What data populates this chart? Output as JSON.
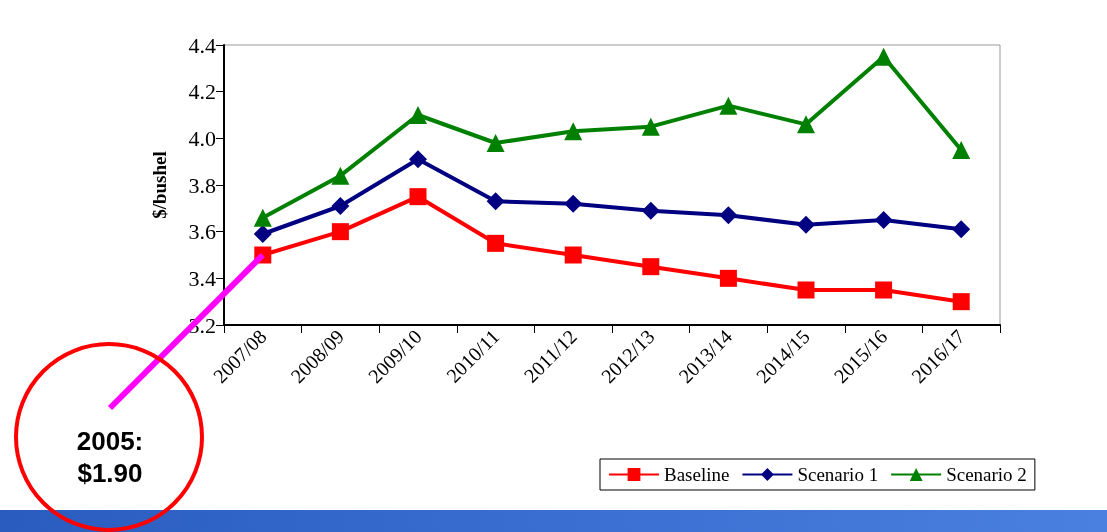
{
  "chart_data": {
    "type": "line",
    "ylabel": "$/bushel",
    "categories": [
      "2007/08",
      "2008/09",
      "2009/10",
      "2010/11",
      "2011/12",
      "2012/13",
      "2013/14",
      "2014/15",
      "2015/16",
      "2016/17"
    ],
    "series": [
      {
        "name": "Baseline",
        "color": "#ff0000",
        "marker": "square",
        "values": [
          3.5,
          3.6,
          3.75,
          3.55,
          3.5,
          3.45,
          3.4,
          3.35,
          3.35,
          3.3
        ]
      },
      {
        "name": "Scenario 1",
        "color": "#000080",
        "marker": "diamond",
        "values": [
          3.59,
          3.71,
          3.91,
          3.73,
          3.72,
          3.69,
          3.67,
          3.63,
          3.65,
          3.61
        ]
      },
      {
        "name": "Scenario 2",
        "color": "#008000",
        "marker": "triangle",
        "values": [
          3.66,
          3.84,
          4.1,
          3.98,
          4.03,
          4.05,
          4.14,
          4.06,
          4.35,
          3.95
        ]
      }
    ],
    "ylim": [
      3.2,
      4.4
    ],
    "yticks": [
      {
        "value": 3.2,
        "label": "3.2"
      },
      {
        "value": 3.4,
        "label": "3.4"
      },
      {
        "value": 3.6,
        "label": "3.6"
      },
      {
        "value": 3.8,
        "label": "3.8"
      },
      {
        "value": 4.0,
        "label": "4.0"
      },
      {
        "value": 4.2,
        "label": "4.2"
      },
      {
        "value": 4.4,
        "label": "4.4"
      }
    ],
    "grid": false,
    "legend": "bottom",
    "line_style": "solid",
    "annotations": [
      {
        "text": "2005:\n$1.90",
        "x": "2007/08",
        "y": 3.5
      }
    ]
  }
}
